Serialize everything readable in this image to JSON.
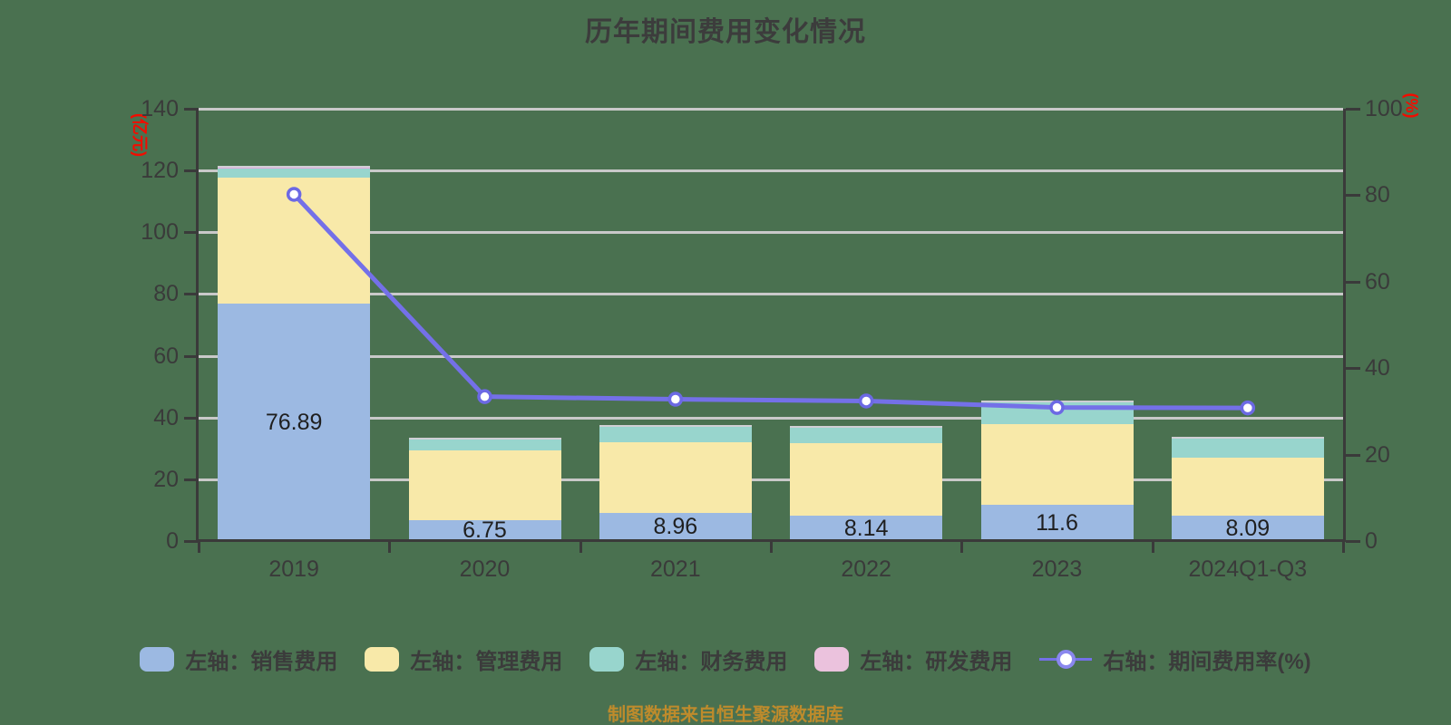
{
  "title": "历年期间费用变化情况",
  "caption": "制图数据来自恒生聚源数据库",
  "colors": {
    "background": "#4A7150",
    "grid": "#C9C9C9",
    "axis": "#3A3A3A",
    "axis_unit_text": "#F20C00",
    "title_text": "#3C3C3C",
    "caption_text": "#BE8B2C",
    "bar_value_text": "#1F1F1F",
    "line": "#7470E8",
    "marker_fill": "#FFFFFF",
    "marker_stroke": "#6C69E4"
  },
  "chart_data": {
    "type": "bar",
    "subtype": "stacked-bar-with-line",
    "title": "历年期间费用变化情况",
    "categories": [
      "2019",
      "2020",
      "2021",
      "2022",
      "2023",
      "2024Q1-Q3"
    ],
    "bar_series": [
      {
        "name": "左轴：销售费用",
        "color": "#9CB9E2",
        "values": [
          76.89,
          6.75,
          8.96,
          8.14,
          11.6,
          8.09
        ]
      },
      {
        "name": "左轴：管理费用",
        "color": "#F8E9A9",
        "values": [
          40.9,
          22.6,
          22.9,
          23.7,
          26.3,
          19.0
        ]
      },
      {
        "name": "左轴：财务费用",
        "color": "#98D5CD",
        "values": [
          2.9,
          3.4,
          5.0,
          4.9,
          7.0,
          6.1
        ]
      },
      {
        "name": "左轴：研发费用",
        "color": "#E5A9E0",
        "legend_color": "#EBC2DD",
        "values": [
          0.9,
          0.5,
          0.3,
          0.3,
          0.3,
          0.4
        ]
      }
    ],
    "line_series": {
      "name": "右轴：期间费用率(%)",
      "color": "#7470E8",
      "axis": "right",
      "values": [
        80.2,
        33.4,
        32.8,
        32.4,
        30.9,
        30.8
      ]
    },
    "bar_value_labels": [
      "76.89",
      "6.75",
      "8.96",
      "8.14",
      "11.6",
      "8.09"
    ],
    "left_axis": {
      "unit": "(亿元)",
      "min": 0,
      "max": 140,
      "tick_labels": [
        "0",
        "20",
        "40",
        "60",
        "80",
        "100",
        "120",
        "140"
      ]
    },
    "right_axis": {
      "unit": "(%)",
      "min": 0,
      "max": 100,
      "tick_labels": [
        "0",
        "20",
        "40",
        "60",
        "80",
        "100"
      ]
    },
    "grid": true,
    "legend_position": "bottom"
  }
}
